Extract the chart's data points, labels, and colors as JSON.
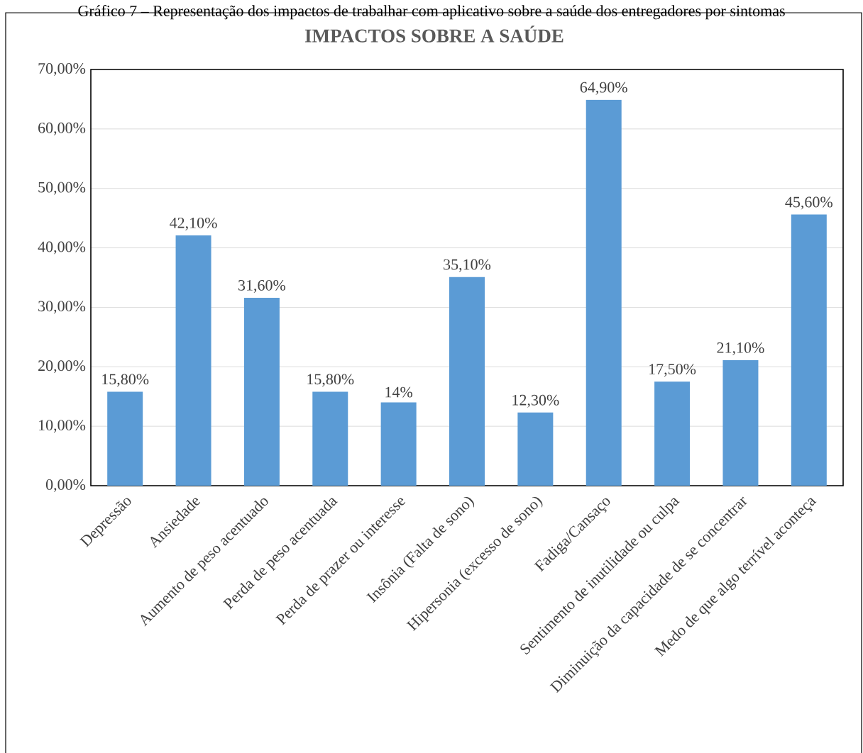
{
  "chart_data": {
    "type": "bar",
    "title": "IMPACTOS SOBRE A SAÚDE",
    "annotations": [
      "Gráfico 7 – Representação dos impactos de trabalhar com aplicativo sobre a saúde dos entregadores por sintomas"
    ],
    "categories": [
      "Depressão",
      "Ansiedade",
      "Aumento de peso acentuado",
      "Perda de peso acentuada",
      "Perda de prazer ou interesse",
      "Insônia (Falta de sono)",
      "Hipersonia (excesso de sono)",
      "Fadiga/Cansaço",
      "Sentimento de inutilidade ou culpa",
      "Diminuição da capacidade de se concentrar",
      "Medo de que algo terrível aconteça"
    ],
    "values": [
      15.8,
      42.1,
      31.6,
      15.8,
      14,
      35.1,
      12.3,
      64.9,
      17.5,
      21.1,
      45.6
    ],
    "value_labels": [
      "15,80%",
      "42,10%",
      "31,60%",
      "15,80%",
      "14%",
      "35,10%",
      "12,30%",
      "64,90%",
      "17,50%",
      "21,10%",
      "45,60%"
    ],
    "color": "#5b9bd5",
    "ylim": [
      0,
      70
    ],
    "yticks": [
      {
        "value": 0,
        "label": "0,00%"
      },
      {
        "value": 10,
        "label": "10,00%"
      },
      {
        "value": 20,
        "label": "20,00%"
      },
      {
        "value": 30,
        "label": "30,00%"
      },
      {
        "value": 40,
        "label": "40,00%"
      },
      {
        "value": 50,
        "label": "50,00%"
      },
      {
        "value": 60,
        "label": "60,00%"
      },
      {
        "value": 70,
        "label": "70,00%"
      }
    ],
    "grid": "y"
  }
}
